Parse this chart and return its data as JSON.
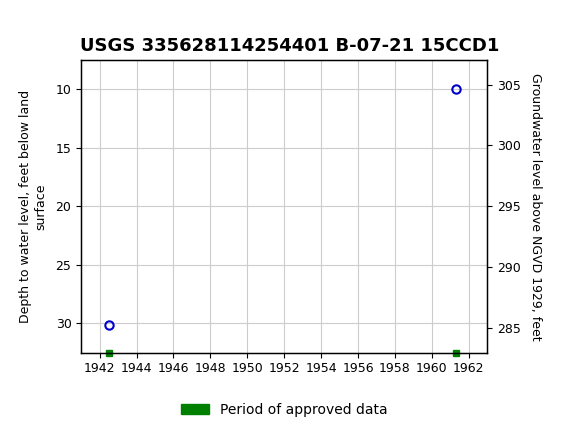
{
  "title": "USGS 335628114254401 B-07-21 15CCD1",
  "header_bg_color": "#1a6b3c",
  "plot_bg_color": "#ffffff",
  "grid_color": "#cccccc",
  "data_points": [
    {
      "year": 1942.5,
      "depth": 30.1
    },
    {
      "year": 1961.3,
      "depth": 10.0
    }
  ],
  "approved_squares": [
    {
      "year": 1942.5,
      "y": 32.5
    },
    {
      "year": 1961.3,
      "y": 32.5
    }
  ],
  "marker_color": "#0000cc",
  "approved_color": "#008000",
  "ylabel_left": "Depth to water level, feet below land\nsurface",
  "ylabel_right": "Groundwater level above NGVD 1929, feet",
  "xlim": [
    1941,
    1963
  ],
  "ylim_left": [
    32.5,
    7.5
  ],
  "ylim_right": [
    283,
    307
  ],
  "xticks": [
    1942,
    1944,
    1946,
    1948,
    1950,
    1952,
    1954,
    1956,
    1958,
    1960,
    1962
  ],
  "yticks_left": [
    10,
    15,
    20,
    25,
    30
  ],
  "yticks_right": [
    285,
    290,
    295,
    300,
    305
  ],
  "legend_label": "Period of approved data",
  "title_fontsize": 13,
  "axis_fontsize": 9,
  "tick_fontsize": 9
}
